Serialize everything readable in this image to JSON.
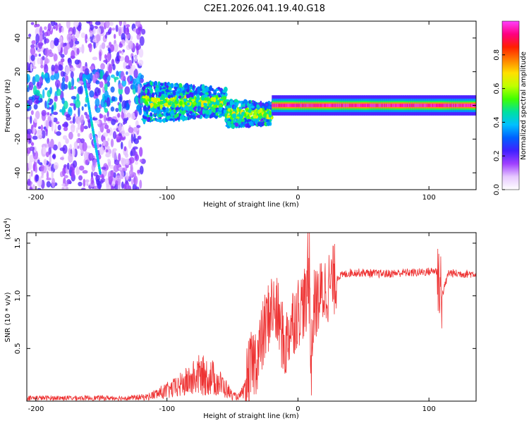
{
  "title": "C2E1.2026.041.19.40.G18",
  "colors": {
    "snr_line": "#ee3333",
    "axis": "#000000"
  },
  "chart_data": [
    {
      "type": "heatmap",
      "title": "",
      "xlabel": "Height of straight line (km)",
      "ylabel": "Frequency (Hz)",
      "xlim": [
        -207,
        136
      ],
      "ylim": [
        -50,
        50
      ],
      "xticks": [
        -200,
        -100,
        0,
        100
      ],
      "xtick_labels": [
        "-200",
        "-100",
        "0",
        "100"
      ],
      "yticks": [
        -40,
        -20,
        0,
        20,
        40
      ],
      "ytick_labels": [
        "-40",
        "-20",
        "0",
        "20",
        "40"
      ],
      "colorbar": {
        "label": "Normalized spectral amplitude",
        "range": [
          0,
          1
        ],
        "ticks": [
          0.0,
          0.2,
          0.4,
          0.6,
          0.8
        ],
        "tick_labels": [
          "0.0",
          "0.2",
          "0.4",
          "0.6",
          "0.8"
        ],
        "colormap": [
          "#ffffff",
          "#e6c8ff",
          "#a040ff",
          "#4020ff",
          "#0060ff",
          "#00c0ff",
          "#00e0a0",
          "#40ff00",
          "#c0ff00",
          "#ffe000",
          "#ff8000",
          "#ff2000",
          "#ff0080",
          "#ff40ff"
        ]
      },
      "features": {
        "noise_region_x": [
          -207,
          -118
        ],
        "band_center_hz": 0,
        "strong_signal_start_km": -20
      }
    },
    {
      "type": "line",
      "title": "",
      "xlabel": "Height of straight line (km)",
      "ylabel": "SNR (10 * v/v)",
      "y_multiplier_label": "(x10",
      "y_multiplier_exp": "4",
      "y_multiplier_close": ")",
      "xlim": [
        -207,
        136
      ],
      "ylim": [
        0,
        1.6
      ],
      "xticks": [
        -200,
        -100,
        0,
        100
      ],
      "xtick_labels": [
        "-200",
        "-100",
        "0",
        "100"
      ],
      "yticks": [
        0.5,
        1.0,
        1.5
      ],
      "ytick_labels": [
        "0.5",
        "1.0",
        "1.5"
      ],
      "series": [
        {
          "name": "SNR",
          "x": [
            -207,
            -190,
            -170,
            -150,
            -130,
            -115,
            -105,
            -95,
            -85,
            -75,
            -65,
            -55,
            -50,
            -45,
            -40,
            -35,
            -30,
            -25,
            -20,
            -15,
            -10,
            -5,
            0,
            5,
            8,
            10,
            12,
            15,
            20,
            30,
            40,
            50,
            60,
            70,
            80,
            90,
            100,
            105,
            108,
            110,
            115,
            120,
            136
          ],
          "values": [
            0.03,
            0.03,
            0.03,
            0.03,
            0.03,
            0.04,
            0.08,
            0.12,
            0.18,
            0.25,
            0.22,
            0.12,
            0.05,
            0.04,
            0.12,
            0.35,
            0.45,
            0.7,
            0.9,
            0.8,
            0.5,
            0.75,
            0.85,
            0.95,
            0.85,
            0.3,
            0.9,
            0.95,
            1.05,
            1.18,
            1.22,
            1.22,
            1.21,
            1.21,
            1.22,
            1.22,
            1.23,
            1.24,
            1.2,
            1.0,
            1.22,
            1.21,
            1.21
          ]
        }
      ]
    }
  ]
}
